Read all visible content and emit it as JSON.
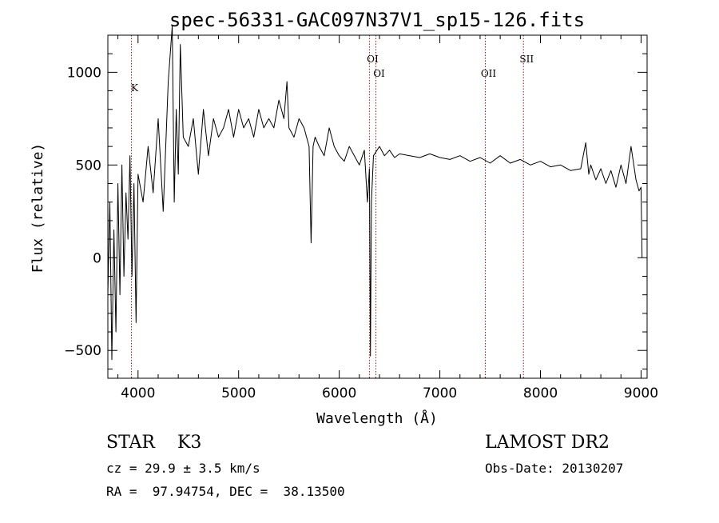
{
  "chart_data": {
    "type": "line",
    "title": "spec-56331-GAC097N37V1_sp15-126.fits",
    "xlabel": "Wavelength (Å)",
    "ylabel": "Flux (relative)",
    "xlim": [
      3700,
      9060
    ],
    "ylim": [
      -650,
      1200
    ],
    "x_ticks": [
      4000,
      5000,
      6000,
      7000,
      8000,
      9000
    ],
    "x_tick_labels": [
      "4000",
      "5000",
      "6000",
      "7000",
      "8000",
      "9000"
    ],
    "y_ticks": [
      -500,
      0,
      500,
      1000
    ],
    "y_tick_labels": [
      "−500",
      "0",
      "500",
      "1000"
    ],
    "grid": false,
    "series": [
      {
        "x": [
          3700,
          3720,
          3740,
          3760,
          3780,
          3800,
          3820,
          3840,
          3860,
          3880,
          3900,
          3920,
          3940,
          3960,
          3980,
          4000,
          4050,
          4100,
          4150,
          4200,
          4250,
          4300,
          4340,
          4360,
          4380,
          4400,
          4420,
          4450,
          4500,
          4550,
          4600,
          4650,
          4700,
          4750,
          4800,
          4850,
          4900,
          4950,
          5000,
          5050,
          5100,
          5150,
          5200,
          5250,
          5300,
          5350,
          5400,
          5450,
          5480,
          5500,
          5550,
          5600,
          5650,
          5700,
          5720,
          5740,
          5760,
          5800,
          5850,
          5900,
          5950,
          6000,
          6050,
          6100,
          6150,
          6200,
          6250,
          6280,
          6300,
          6310,
          6320,
          6340,
          6400,
          6450,
          6500,
          6550,
          6600,
          6700,
          6800,
          6900,
          7000,
          7100,
          7200,
          7300,
          7400,
          7500,
          7600,
          7700,
          7800,
          7900,
          8000,
          8100,
          8200,
          8300,
          8400,
          8450,
          8480,
          8500,
          8550,
          8600,
          8650,
          8700,
          8750,
          8800,
          8850,
          8900,
          8950,
          8980,
          9000,
          9010
        ],
        "y": [
          -200,
          300,
          -550,
          150,
          -400,
          400,
          -200,
          500,
          -100,
          350,
          100,
          550,
          -100,
          400,
          -350,
          450,
          300,
          600,
          350,
          750,
          250,
          950,
          1250,
          300,
          800,
          450,
          1150,
          650,
          600,
          750,
          450,
          800,
          550,
          750,
          650,
          700,
          800,
          650,
          800,
          700,
          750,
          650,
          800,
          700,
          750,
          700,
          850,
          750,
          950,
          700,
          650,
          750,
          700,
          600,
          80,
          600,
          650,
          600,
          550,
          700,
          600,
          550,
          520,
          600,
          550,
          500,
          580,
          300,
          480,
          -530,
          300,
          550,
          600,
          550,
          580,
          540,
          560,
          550,
          540,
          560,
          540,
          530,
          550,
          520,
          540,
          510,
          550,
          510,
          530,
          500,
          520,
          490,
          500,
          470,
          480,
          620,
          450,
          500,
          420,
          480,
          400,
          470,
          380,
          500,
          400,
          600,
          420,
          360,
          380,
          0
        ]
      }
    ],
    "lines": [
      {
        "name": "K",
        "x": 3934
      },
      {
        "name": "OI",
        "x": 6300
      },
      {
        "name": "OI",
        "x": 6364
      },
      {
        "name": "OII",
        "x": 7452
      },
      {
        "name": "SII",
        "x": 7831
      }
    ]
  },
  "info": {
    "class_line": "STAR    K3",
    "cz_line": "cz = 29.9 ± 3.5 km/s",
    "radec_line": "RA =  97.94754, DEC =  38.13500",
    "survey": "LAMOST DR2",
    "obs_date": "Obs-Date: 20130207"
  }
}
